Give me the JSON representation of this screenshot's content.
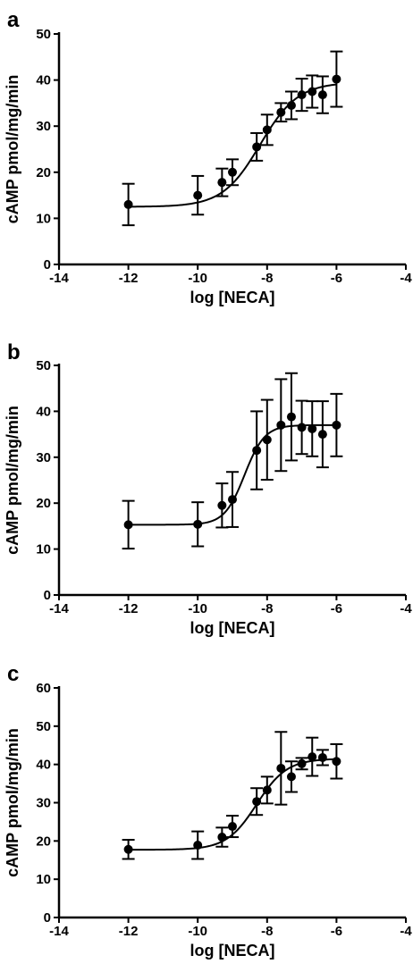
{
  "chart_data": [
    {
      "panel": "a",
      "type": "scatter",
      "xlabel": "log [NECA]",
      "ylabel": "cAMP pmol/mg/min",
      "xlim": [
        -14,
        -4
      ],
      "ylim": [
        0,
        50
      ],
      "xticks": [
        -14,
        -12,
        -10,
        -8,
        -6,
        -4
      ],
      "yticks": [
        0,
        10,
        20,
        30,
        40,
        50
      ],
      "grid": false,
      "points": [
        {
          "x": -12,
          "y": 13.0,
          "err": 4.5
        },
        {
          "x": -10,
          "y": 15.0,
          "err": 4.2
        },
        {
          "x": -9.3,
          "y": 17.8,
          "err": 3.0
        },
        {
          "x": -9.0,
          "y": 20.0,
          "err": 2.8
        },
        {
          "x": -8.3,
          "y": 25.5,
          "err": 3.0
        },
        {
          "x": -8.0,
          "y": 29.2,
          "err": 3.3
        },
        {
          "x": -7.6,
          "y": 33.0,
          "err": 2.0
        },
        {
          "x": -7.3,
          "y": 34.5,
          "err": 3.0
        },
        {
          "x": -7.0,
          "y": 36.8,
          "err": 3.5
        },
        {
          "x": -6.7,
          "y": 37.5,
          "err": 3.5
        },
        {
          "x": -6.4,
          "y": 36.8,
          "err": 4.0
        },
        {
          "x": -6.0,
          "y": 40.2,
          "err": 6.0
        }
      ],
      "fit": {
        "bottom": 12.5,
        "top": 39.5,
        "logEC50": -8.2,
        "hill": 0.8
      }
    },
    {
      "panel": "b",
      "type": "scatter",
      "xlabel": "log [NECA]",
      "ylabel": "cAMP pmol/mg/min",
      "xlim": [
        -14,
        -4
      ],
      "ylim": [
        0,
        50
      ],
      "xticks": [
        -14,
        -12,
        -10,
        -8,
        -6,
        -4
      ],
      "yticks": [
        0,
        10,
        20,
        30,
        40,
        50
      ],
      "grid": false,
      "points": [
        {
          "x": -12,
          "y": 15.3,
          "err": 5.2
        },
        {
          "x": -10,
          "y": 15.4,
          "err": 4.8
        },
        {
          "x": -9.3,
          "y": 19.5,
          "err": 4.8
        },
        {
          "x": -9.0,
          "y": 20.8,
          "err": 6.0
        },
        {
          "x": -8.3,
          "y": 31.5,
          "err": 8.5
        },
        {
          "x": -8.0,
          "y": 33.8,
          "err": 8.7
        },
        {
          "x": -7.6,
          "y": 37.0,
          "err": 10.0
        },
        {
          "x": -7.3,
          "y": 38.8,
          "err": 9.5
        },
        {
          "x": -7.0,
          "y": 36.5,
          "err": 5.8
        },
        {
          "x": -6.7,
          "y": 36.2,
          "err": 6.0
        },
        {
          "x": -6.4,
          "y": 35.0,
          "err": 7.2
        },
        {
          "x": -6.0,
          "y": 37.0,
          "err": 6.8
        }
      ],
      "fit": {
        "bottom": 15.3,
        "top": 37.0,
        "logEC50": -8.65,
        "hill": 1.5
      }
    },
    {
      "panel": "c",
      "type": "scatter",
      "xlabel": "log [NECA]",
      "ylabel": "cAMP pmol/mg/min",
      "xlim": [
        -14,
        -4
      ],
      "ylim": [
        0,
        60
      ],
      "xticks": [
        -14,
        -12,
        -10,
        -8,
        -6,
        -4
      ],
      "yticks": [
        0,
        10,
        20,
        30,
        40,
        50,
        60
      ],
      "grid": false,
      "points": [
        {
          "x": -12,
          "y": 17.8,
          "err": 2.5
        },
        {
          "x": -10,
          "y": 18.9,
          "err": 3.6
        },
        {
          "x": -9.3,
          "y": 21.0,
          "err": 2.5
        },
        {
          "x": -9.0,
          "y": 23.8,
          "err": 2.8
        },
        {
          "x": -8.3,
          "y": 30.3,
          "err": 3.5
        },
        {
          "x": -8.0,
          "y": 33.3,
          "err": 3.5
        },
        {
          "x": -7.6,
          "y": 39.0,
          "err": 9.5
        },
        {
          "x": -7.3,
          "y": 36.8,
          "err": 4.0
        },
        {
          "x": -7.0,
          "y": 40.2,
          "err": 1.5
        },
        {
          "x": -6.7,
          "y": 42.0,
          "err": 5.0
        },
        {
          "x": -6.4,
          "y": 41.8,
          "err": 2.0
        },
        {
          "x": -6.0,
          "y": 40.8,
          "err": 4.5
        }
      ],
      "fit": {
        "bottom": 17.7,
        "top": 41.5,
        "logEC50": -8.3,
        "hill": 1.0
      }
    }
  ]
}
